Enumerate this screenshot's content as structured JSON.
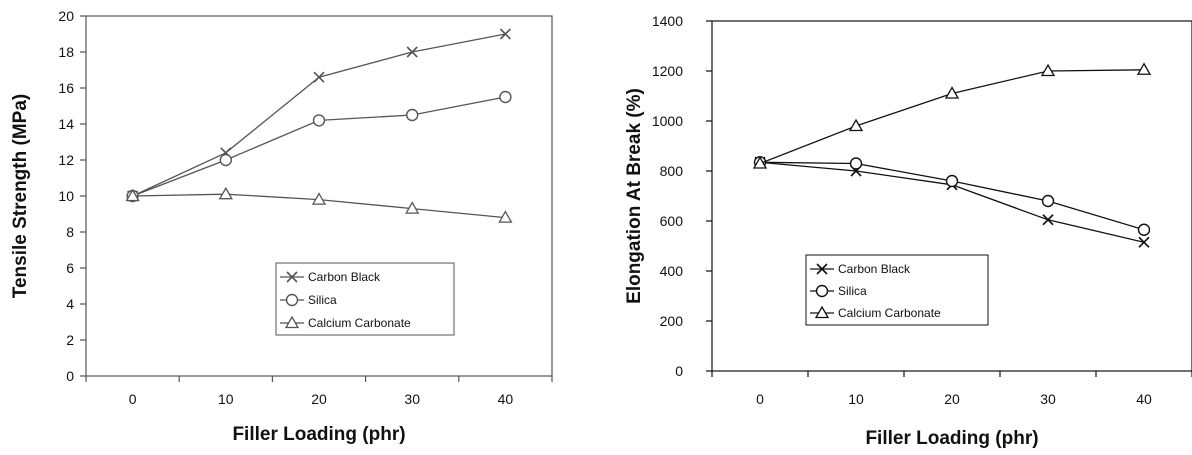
{
  "chart_data": [
    {
      "type": "line",
      "title": "",
      "xlabel": "Filler Loading (phr)",
      "ylabel": "Tensile Strength (MPa)",
      "x": [
        0,
        10,
        20,
        30,
        40
      ],
      "xlim": [
        -5,
        45
      ],
      "ylim": [
        0,
        20
      ],
      "xticks": [
        0,
        10,
        20,
        30,
        40
      ],
      "yticks": [
        0,
        2,
        4,
        6,
        8,
        10,
        12,
        14,
        16,
        18,
        20
      ],
      "grid": false,
      "legend_position": "center-right",
      "series": [
        {
          "name": "Carbon Black",
          "marker": "x",
          "color": "#555555",
          "values": [
            10.0,
            12.4,
            16.6,
            18.0,
            19.0
          ]
        },
        {
          "name": "Silica",
          "marker": "circle",
          "color": "#555555",
          "values": [
            10.0,
            12.0,
            14.2,
            14.5,
            15.5
          ]
        },
        {
          "name": "Calcium Carbonate",
          "marker": "triangle",
          "color": "#555555",
          "values": [
            10.0,
            10.1,
            9.8,
            9.3,
            8.8
          ]
        }
      ]
    },
    {
      "type": "line",
      "title": "",
      "xlabel": "Filler Loading (phr)",
      "ylabel": "Elongation At Break (%)",
      "x": [
        0,
        10,
        20,
        30,
        40
      ],
      "xlim": [
        -5,
        45
      ],
      "ylim": [
        0,
        1400
      ],
      "xticks": [
        0,
        10,
        20,
        30,
        40
      ],
      "yticks": [
        0,
        200,
        400,
        600,
        800,
        1000,
        1200,
        1400
      ],
      "grid": false,
      "legend_position": "bottom-left",
      "series": [
        {
          "name": "Carbon Black",
          "marker": "x",
          "color": "#111111",
          "values": [
            835,
            800,
            745,
            605,
            515
          ]
        },
        {
          "name": "Silica",
          "marker": "circle",
          "color": "#111111",
          "values": [
            835,
            830,
            760,
            680,
            565
          ]
        },
        {
          "name": "Calcium Carbonate",
          "marker": "triangle",
          "color": "#111111",
          "values": [
            830,
            980,
            1110,
            1200,
            1205
          ]
        }
      ]
    }
  ]
}
